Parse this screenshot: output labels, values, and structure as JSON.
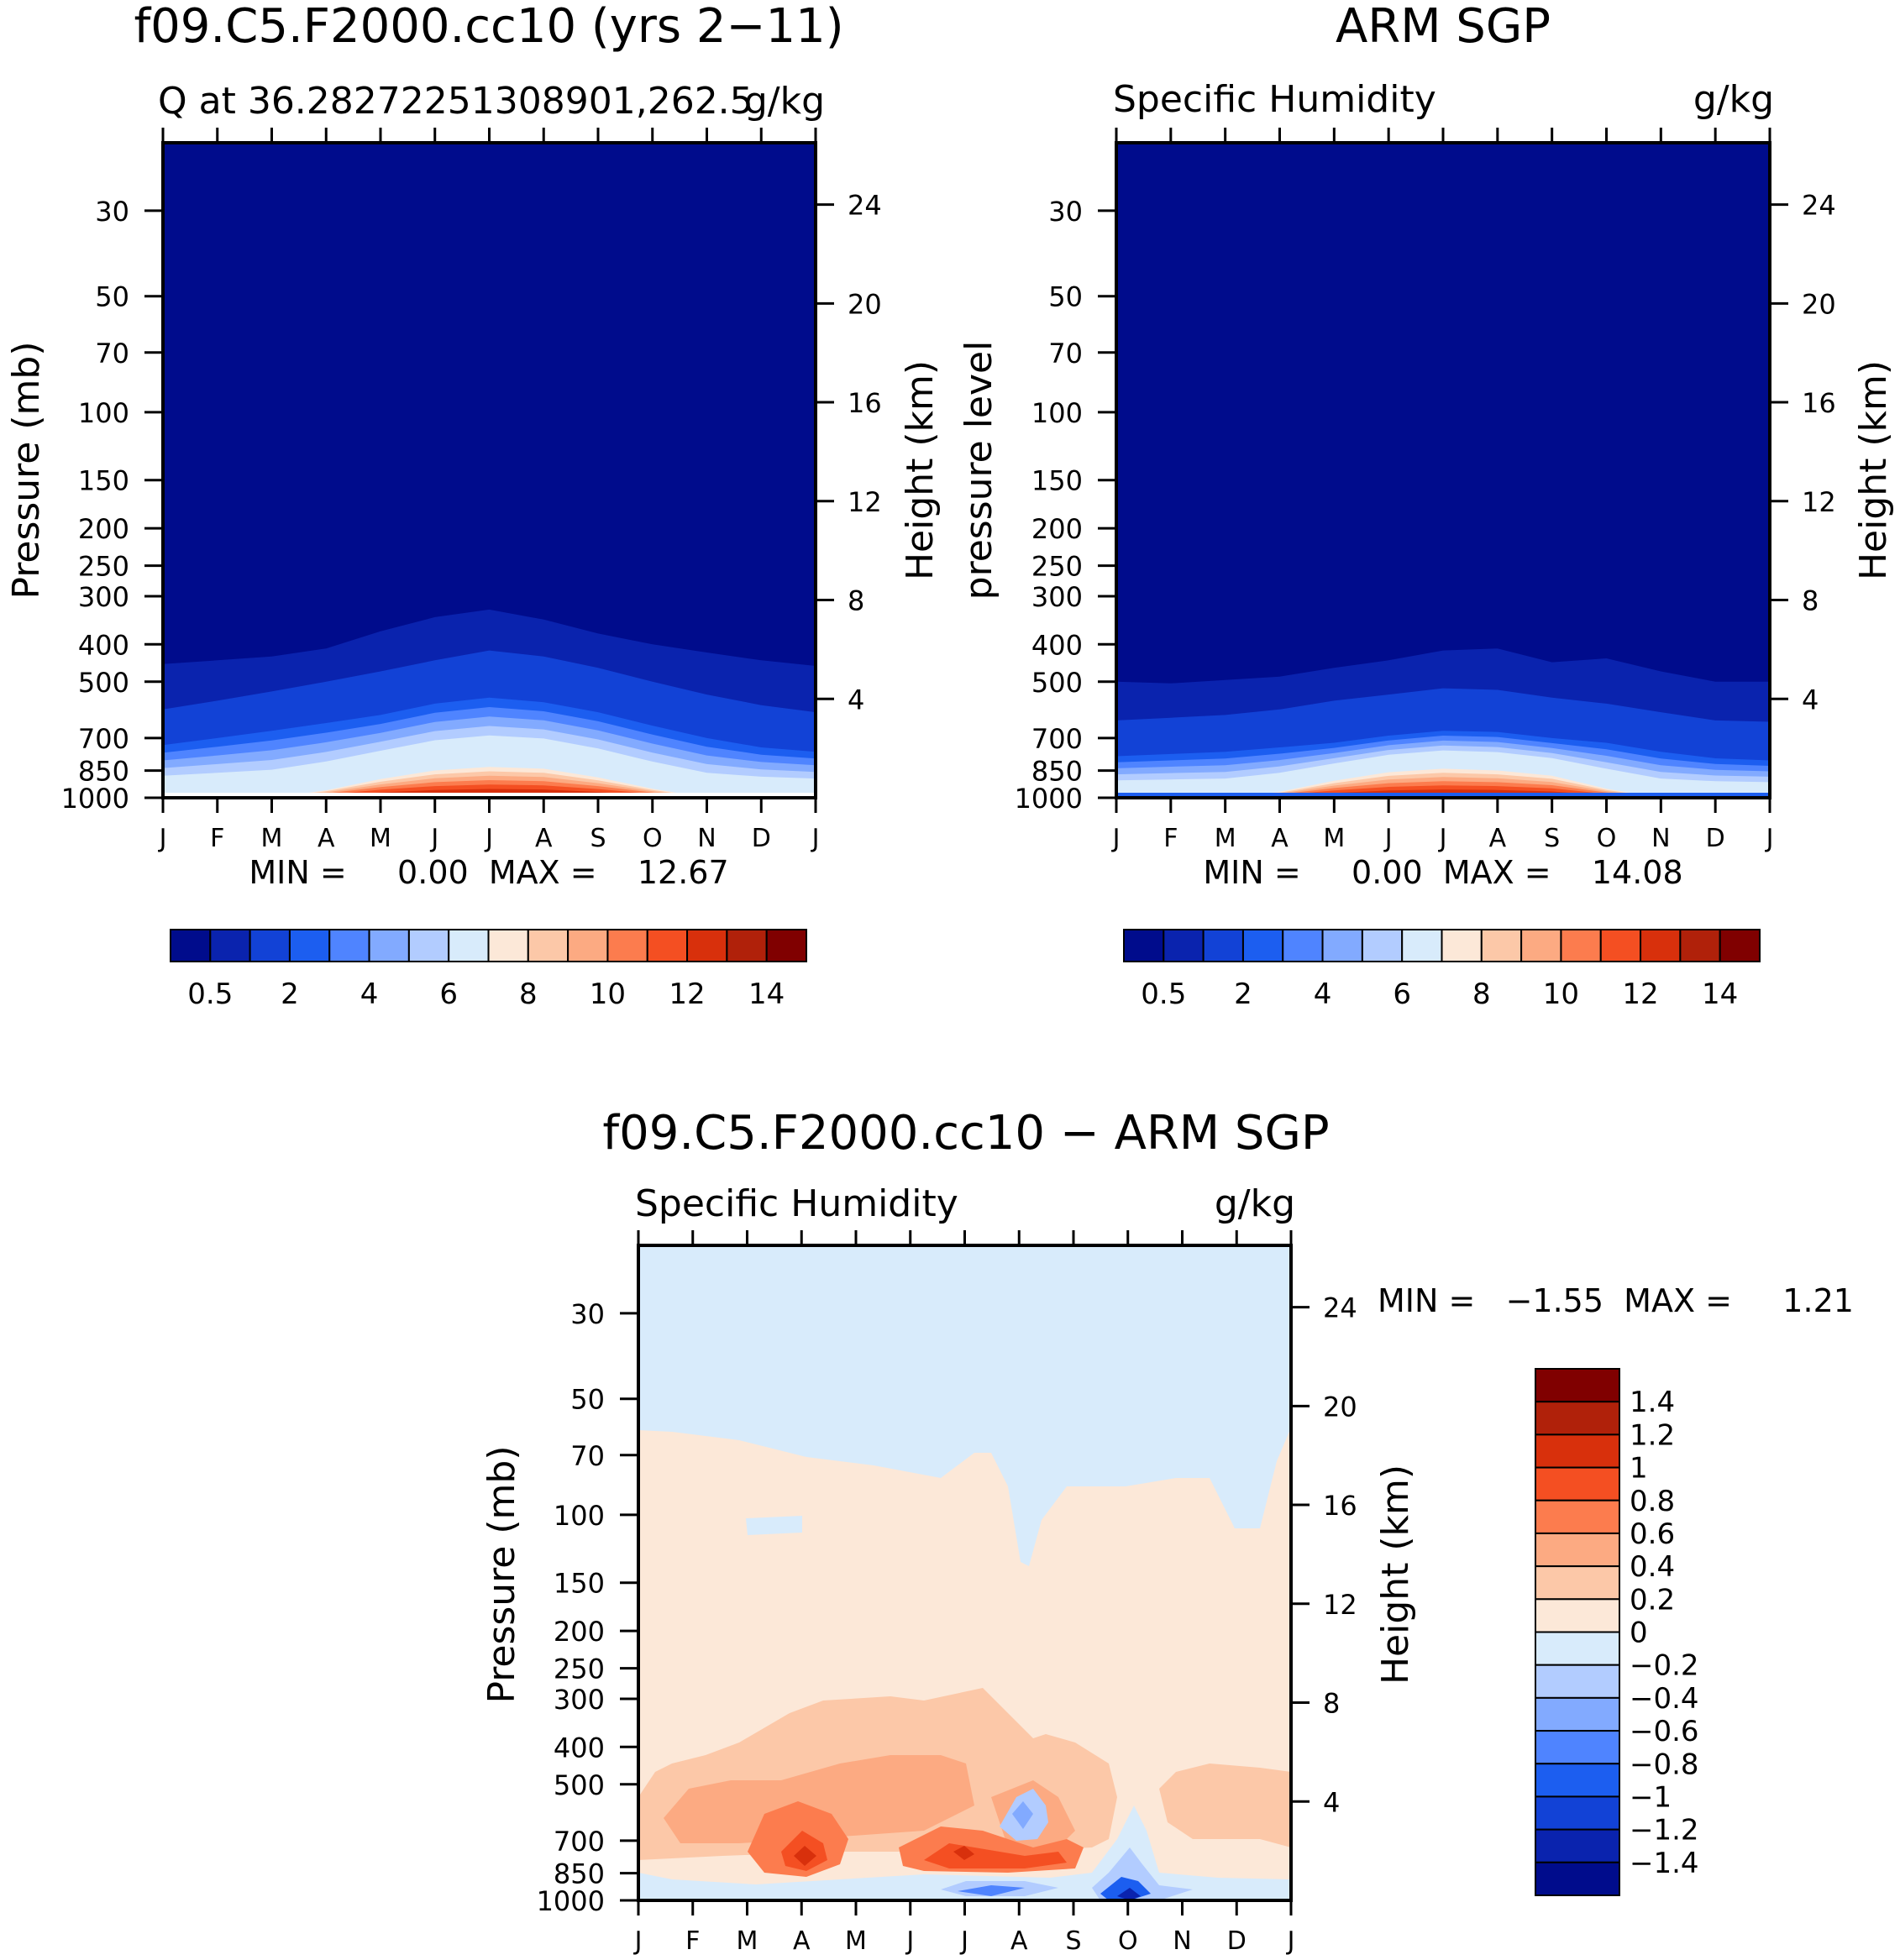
{
  "palette": {
    "q": [
      "#000c8c",
      "#0a23ae",
      "#1242d6",
      "#1c5ef0",
      "#4f84ff",
      "#82aaff",
      "#b2ccff",
      "#d8ebfb",
      "#fce8d8",
      "#fcc8a8",
      "#fcaa82",
      "#fc7c4e",
      "#f44f22",
      "#d8300c",
      "#b0210a",
      "#800000"
    ],
    "diff": [
      "#000c8c",
      "#0a23ae",
      "#1242d6",
      "#1c5ef0",
      "#4f84ff",
      "#82aaff",
      "#b2ccff",
      "#d8ebfb",
      "#fce8d8",
      "#fcc8a8",
      "#fcaa82",
      "#fc7c4e",
      "#f44f22",
      "#d8300c",
      "#b0210a",
      "#800000"
    ]
  },
  "chart_data": [
    {
      "id": "model",
      "type": "contour",
      "title": "f09.C5.F2000.cc10 (yrs 2−11)",
      "left_label": "Q at 36.28272251308901,262.5",
      "right_label": "g/kg",
      "ylabel": "Pressure (mb)",
      "ylabel_right": "Height (km)",
      "months": [
        "J",
        "F",
        "M",
        "A",
        "M",
        "J",
        "J",
        "A",
        "S",
        "O",
        "N",
        "D",
        "J"
      ],
      "pressure_ticks": [
        "30",
        "50",
        "70",
        "100",
        "150",
        "200",
        "250",
        "300",
        "400",
        "500",
        "700",
        "850",
        "1000"
      ],
      "height_ticks": [
        "24",
        "20",
        "16",
        "12",
        "8",
        "4"
      ],
      "level_tops_mb": {
        "l1": [
          450,
          440,
          430,
          410,
          370,
          340,
          325,
          345,
          375,
          400,
          420,
          440,
          455
        ],
        "l2": [
          590,
          560,
          530,
          500,
          470,
          440,
          415,
          430,
          460,
          500,
          540,
          575,
          600
        ],
        "l3": [
          730,
          700,
          670,
          640,
          610,
          570,
          550,
          565,
          600,
          650,
          700,
          740,
          760
        ],
        "warm": [
          1000,
          1000,
          1000,
          950,
          880,
          830,
          810,
          820,
          870,
          940,
          1000,
          1000,
          1000
        ]
      },
      "stats": "MIN =     0.00  MAX =    12.67",
      "min": 0.0,
      "max": 12.67,
      "colorbar_labels": [
        "0.5",
        "2",
        "4",
        "6",
        "8",
        "10",
        "12",
        "14"
      ]
    },
    {
      "id": "obs",
      "type": "contour",
      "title": "ARM SGP",
      "left_label": "Specific Humidity",
      "right_label": "g/kg",
      "ylabel": "pressure level",
      "ylabel_right": "Height (km)",
      "months": [
        "J",
        "F",
        "M",
        "A",
        "M",
        "J",
        "J",
        "A",
        "S",
        "O",
        "N",
        "D",
        "J"
      ],
      "pressure_ticks": [
        "30",
        "50",
        "70",
        "100",
        "150",
        "200",
        "250",
        "300",
        "400",
        "500",
        "700",
        "850",
        "1000"
      ],
      "height_ticks": [
        "24",
        "20",
        "16",
        "12",
        "8",
        "4"
      ],
      "level_tops_mb": {
        "l1": [
          500,
          505,
          495,
          485,
          460,
          440,
          415,
          410,
          445,
          435,
          470,
          500,
          500
        ],
        "l2": [
          630,
          620,
          610,
          590,
          560,
          540,
          520,
          525,
          550,
          570,
          600,
          630,
          635
        ],
        "l3": [
          780,
          770,
          760,
          740,
          720,
          690,
          670,
          675,
          700,
          720,
          760,
          790,
          800
        ],
        "warm": [
          1000,
          1000,
          1000,
          960,
          890,
          840,
          820,
          830,
          860,
          940,
          1000,
          1000,
          1000
        ]
      },
      "stats": "MIN =     0.00  MAX =    14.08",
      "min": 0.0,
      "max": 14.08,
      "colorbar_labels": [
        "0.5",
        "2",
        "4",
        "6",
        "8",
        "10",
        "12",
        "14"
      ]
    },
    {
      "id": "diff",
      "type": "contour",
      "title": "f09.C5.F2000.cc10 − ARM SGP",
      "left_label": "Specific Humidity",
      "right_label": "g/kg",
      "ylabel": "Pressure (mb)",
      "ylabel_right": "Height (km)",
      "months": [
        "J",
        "F",
        "M",
        "A",
        "M",
        "J",
        "J",
        "A",
        "S",
        "O",
        "N",
        "D",
        "J"
      ],
      "pressure_ticks": [
        "30",
        "50",
        "70",
        "100",
        "150",
        "200",
        "250",
        "300",
        "400",
        "500",
        "700",
        "850",
        "1000"
      ],
      "height_ticks": [
        "24",
        "20",
        "16",
        "12",
        "8",
        "4"
      ],
      "stats": "MIN =   −1.55  MAX =     1.21",
      "min": -1.55,
      "max": 1.21,
      "colorbar_labels": [
        "1.4",
        "1.2",
        "1",
        "0.8",
        "0.6",
        "0.4",
        "0.2",
        "0",
        "−0.2",
        "−0.4",
        "−0.6",
        "−0.8",
        "−1",
        "−1.2",
        "−1.4"
      ]
    }
  ]
}
